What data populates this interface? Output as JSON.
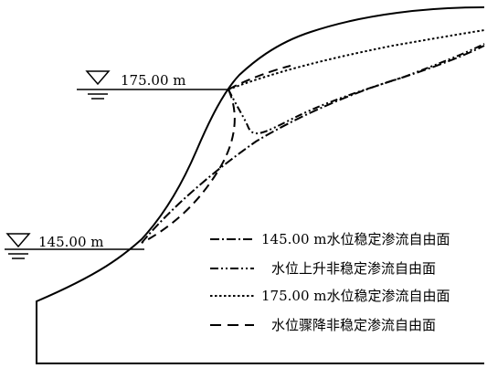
{
  "diagram": {
    "water_levels": [
      {
        "label": "175.00 m"
      },
      {
        "label": "145.00 m"
      }
    ],
    "legend": [
      {
        "text": "145.00 m水位稳定渗流自由面",
        "style": "dash-dot"
      },
      {
        "text": "水位上升非稳定渗流自由面",
        "style": "dash-dot-dot"
      },
      {
        "text": "175.00 m水位稳定渗流自由面",
        "style": "dotted"
      },
      {
        "text": "水位骤降非稳定渗流自由面",
        "style": "dashed"
      }
    ]
  }
}
